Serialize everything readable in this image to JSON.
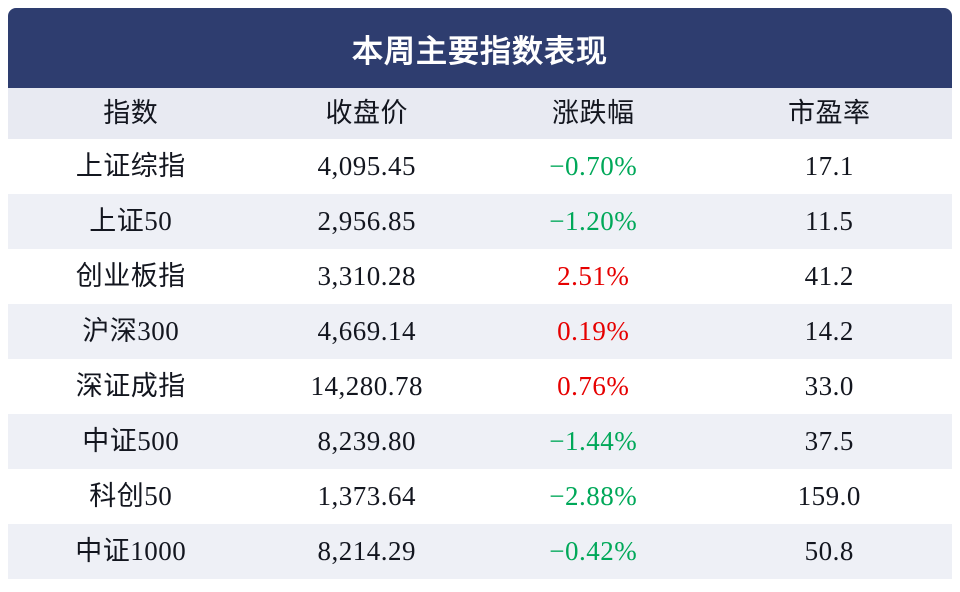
{
  "title": "本周主要指数表现",
  "table": {
    "headers": [
      "指数",
      "收盘价",
      "涨跌幅",
      "市盈率"
    ],
    "rows": [
      {
        "index": "上证综指",
        "close": "4,095.45",
        "change": "−0.70%",
        "direction": "down",
        "pe": "17.1"
      },
      {
        "index": "上证50",
        "close": "2,956.85",
        "change": "−1.20%",
        "direction": "down",
        "pe": "11.5"
      },
      {
        "index": "创业板指",
        "close": "3,310.28",
        "change": "2.51%",
        "direction": "up",
        "pe": "41.2"
      },
      {
        "index": "沪深300",
        "close": "4,669.14",
        "change": "0.19%",
        "direction": "up",
        "pe": "14.2"
      },
      {
        "index": "深证成指",
        "close": "14,280.78",
        "change": "0.76%",
        "direction": "up",
        "pe": "33.0"
      },
      {
        "index": "中证500",
        "close": "8,239.80",
        "change": "−1.44%",
        "direction": "down",
        "pe": "37.5"
      },
      {
        "index": "科创50",
        "close": "1,373.64",
        "change": "−2.88%",
        "direction": "down",
        "pe": "159.0"
      },
      {
        "index": "中证1000",
        "close": "8,214.29",
        "change": "−0.42%",
        "direction": "down",
        "pe": "50.8"
      }
    ]
  },
  "colors": {
    "title_bg": "#2e3d6f",
    "title_text": "#ffffff",
    "header_row_bg": "#e8eaf2",
    "stripe_bg": "#eef0f6",
    "up_red": "#e60000",
    "down_green": "#00a859",
    "text": "#13161f"
  },
  "chart_data": {
    "type": "table",
    "title": "本周主要指数表现",
    "columns": [
      "指数",
      "收盘价",
      "涨跌幅",
      "市盈率"
    ],
    "rows": [
      [
        "上证综指",
        4095.45,
        -0.7,
        17.1
      ],
      [
        "上证50",
        2956.85,
        -1.2,
        11.5
      ],
      [
        "创业板指",
        3310.28,
        2.51,
        41.2
      ],
      [
        "沪深300",
        4669.14,
        0.19,
        14.2
      ],
      [
        "深证成指",
        14280.78,
        0.76,
        33.0
      ],
      [
        "中证500",
        8239.8,
        -1.44,
        37.5
      ],
      [
        "科创50",
        1373.64,
        -2.88,
        159.0
      ],
      [
        "中证1000",
        8214.29,
        -0.42,
        50.8
      ]
    ],
    "notes": "涨跌幅 in percent; positive values rendered red, negative values rendered green"
  }
}
